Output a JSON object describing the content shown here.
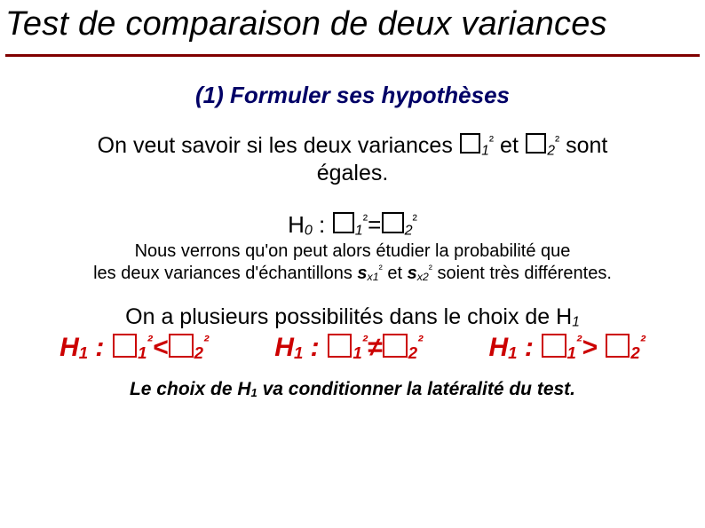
{
  "colors": {
    "title": "#000000",
    "rule": "#800000",
    "subtitle": "#000066",
    "accent_red": "#cc0000",
    "text": "#000000"
  },
  "title": "Test de comparaison de deux variances",
  "subtitle": "(1) Formuler ses hypothèses",
  "body1_a": "On veut savoir si les deux variances ",
  "body1_b": " et ",
  "body1_c": " sont",
  "body1_d": "égales.",
  "sigma1_sub": "1",
  "sigma2_sub": "2",
  "sigma_sup": "²",
  "h0_label": "H",
  "h0_sub": "0",
  "h0_sep": " : ",
  "eq": "=",
  "note_l1_a": "Nous verrons qu'on peut alors étudier la probabilité que",
  "note_l2_a": "les deux variances d'échantillons ",
  "note_sx1": "s",
  "note_x1_sub": "x1",
  "note_and": " et ",
  "note_x2_sub": "x2",
  "note_l2_b": " soient très différentes.",
  "body2_a": "On a plusieurs possibilités dans le choix de H",
  "body2_sub": "1",
  "h1_label": "H",
  "h1_sub": "1",
  "lt": "<",
  "ne": "≠",
  "gt": ">",
  "footnote_a": "Le choix de H",
  "footnote_sub": "1",
  "footnote_b": " va conditionner la latéralité du test."
}
